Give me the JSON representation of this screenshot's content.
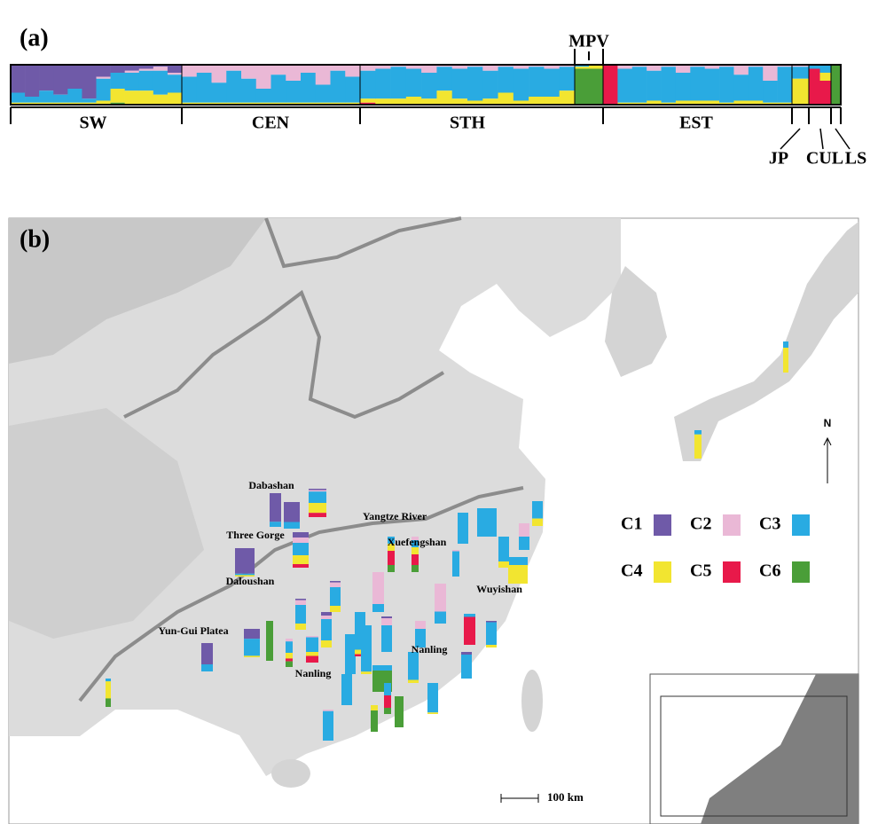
{
  "components": [
    {
      "name": "C1",
      "color": "#6f5aa8"
    },
    {
      "name": "C2",
      "color": "#eab8d6"
    },
    {
      "name": "C3",
      "color": "#29abe2"
    },
    {
      "name": "C4",
      "color": "#f2e530"
    },
    {
      "name": "C5",
      "color": "#e8194a"
    },
    {
      "name": "C6",
      "color": "#4a9e38"
    }
  ],
  "panel_a": {
    "label": "(a)",
    "groups": [
      {
        "name": "SW",
        "individuals": [
          [
            70,
            0,
            25,
            5,
            0,
            0
          ],
          [
            80,
            0,
            15,
            5,
            0,
            0
          ],
          [
            65,
            0,
            30,
            5,
            0,
            0
          ],
          [
            75,
            0,
            20,
            5,
            0,
            0
          ],
          [
            60,
            0,
            35,
            5,
            0,
            0
          ],
          [
            85,
            0,
            10,
            5,
            0,
            0
          ],
          [
            30,
            5,
            55,
            10,
            0,
            0
          ],
          [
            20,
            0,
            40,
            35,
            0,
            5
          ],
          [
            15,
            5,
            45,
            35,
            0,
            0
          ],
          [
            10,
            5,
            50,
            35,
            0,
            0
          ],
          [
            5,
            10,
            60,
            25,
            0,
            0
          ],
          [
            20,
            5,
            45,
            30,
            0,
            0
          ]
        ]
      },
      {
        "name": "CEN",
        "individuals": [
          [
            0,
            30,
            65,
            5,
            0,
            0
          ],
          [
            0,
            20,
            75,
            5,
            0,
            0
          ],
          [
            0,
            45,
            50,
            5,
            0,
            0
          ],
          [
            0,
            15,
            80,
            5,
            0,
            0
          ],
          [
            0,
            35,
            60,
            5,
            0,
            0
          ],
          [
            0,
            60,
            35,
            5,
            0,
            0
          ],
          [
            0,
            25,
            70,
            5,
            0,
            0
          ],
          [
            0,
            40,
            55,
            5,
            0,
            0
          ],
          [
            0,
            20,
            75,
            5,
            0,
            0
          ],
          [
            0,
            50,
            45,
            5,
            0,
            0
          ],
          [
            0,
            15,
            80,
            5,
            0,
            0
          ],
          [
            0,
            30,
            65,
            5,
            0,
            0
          ]
        ]
      },
      {
        "name": "STH",
        "individuals": [
          [
            0,
            15,
            70,
            10,
            5,
            0
          ],
          [
            0,
            10,
            75,
            15,
            0,
            0
          ],
          [
            0,
            5,
            80,
            15,
            0,
            0
          ],
          [
            0,
            10,
            70,
            20,
            0,
            0
          ],
          [
            0,
            20,
            65,
            15,
            0,
            0
          ],
          [
            0,
            5,
            60,
            35,
            0,
            0
          ],
          [
            0,
            10,
            75,
            15,
            0,
            0
          ],
          [
            0,
            5,
            85,
            10,
            0,
            0
          ],
          [
            0,
            15,
            70,
            15,
            0,
            0
          ],
          [
            0,
            5,
            65,
            30,
            0,
            0
          ],
          [
            0,
            10,
            80,
            10,
            0,
            0
          ],
          [
            0,
            5,
            75,
            20,
            0,
            0
          ],
          [
            0,
            10,
            70,
            20,
            0,
            0
          ],
          [
            0,
            5,
            60,
            35,
            0,
            0
          ]
        ]
      },
      {
        "name": "MPV",
        "individuals": [
          [
            0,
            0,
            5,
            5,
            0,
            90
          ],
          [
            0,
            0,
            0,
            10,
            0,
            90
          ]
        ]
      },
      {
        "name": "EST",
        "individuals": [
          [
            0,
            0,
            0,
            0,
            100,
            0
          ],
          [
            0,
            10,
            85,
            5,
            0,
            0
          ],
          [
            0,
            5,
            90,
            5,
            0,
            0
          ],
          [
            0,
            15,
            75,
            10,
            0,
            0
          ],
          [
            0,
            5,
            90,
            5,
            0,
            0
          ],
          [
            0,
            20,
            70,
            10,
            0,
            0
          ],
          [
            0,
            5,
            85,
            10,
            0,
            0
          ],
          [
            0,
            10,
            80,
            10,
            0,
            0
          ],
          [
            0,
            5,
            90,
            5,
            0,
            0
          ],
          [
            0,
            25,
            65,
            10,
            0,
            0
          ],
          [
            0,
            5,
            85,
            10,
            0,
            0
          ],
          [
            0,
            40,
            55,
            5,
            0,
            0
          ],
          [
            0,
            5,
            90,
            5,
            0,
            0
          ]
        ]
      },
      {
        "name": "JP",
        "individuals": [
          [
            0,
            5,
            30,
            65,
            0,
            0
          ]
        ]
      },
      {
        "name": "CUL",
        "individuals": [
          [
            0,
            0,
            10,
            0,
            90,
            0
          ],
          [
            0,
            0,
            20,
            20,
            60,
            0
          ]
        ]
      },
      {
        "name": "LS",
        "individuals": [
          [
            0,
            0,
            0,
            0,
            0,
            100
          ]
        ]
      }
    ]
  },
  "panel_b": {
    "label": "(b)",
    "places": [
      "Dabashan",
      "Three Gorge",
      "Daloushan",
      "Yangtze River",
      "Xuefengshan",
      "Wuyishan",
      "Yun-Gui Platea",
      "Nanling",
      "Nanling"
    ],
    "north": "N",
    "scale": "100 km",
    "populations": [
      [
        85,
        0,
        15,
        0,
        0,
        0
      ],
      [
        75,
        0,
        25,
        0,
        0,
        0
      ],
      [
        5,
        5,
        40,
        35,
        15,
        0
      ],
      [
        90,
        0,
        5,
        5,
        0,
        0
      ],
      [
        15,
        15,
        35,
        25,
        10,
        0
      ],
      [
        75,
        0,
        25,
        0,
        0,
        0
      ],
      [
        35,
        0,
        60,
        5,
        0,
        0
      ],
      [
        0,
        0,
        0,
        0,
        0,
        100
      ],
      [
        0,
        10,
        40,
        20,
        10,
        20
      ],
      [
        0,
        5,
        55,
        15,
        25,
        0
      ],
      [
        5,
        15,
        60,
        20,
        0,
        0
      ],
      [
        5,
        15,
        60,
        20,
        0,
        0
      ],
      [
        10,
        10,
        60,
        20,
        0,
        0
      ],
      [
        0,
        0,
        100,
        0,
        0,
        0
      ],
      [
        0,
        0,
        85,
        10,
        5,
        0
      ],
      [
        0,
        80,
        20,
        0,
        0,
        0
      ],
      [
        5,
        20,
        75,
        0,
        0,
        0
      ],
      [
        0,
        10,
        20,
        20,
        30,
        20
      ],
      [
        0,
        0,
        20,
        20,
        40,
        20
      ],
      [
        0,
        70,
        30,
        0,
        0,
        0
      ],
      [
        0,
        30,
        70,
        0,
        0,
        0
      ],
      [
        0,
        0,
        100,
        0,
        0,
        0
      ],
      [
        0,
        0,
        100,
        0,
        0,
        0
      ],
      [
        0,
        0,
        10,
        0,
        90,
        0
      ],
      [
        0,
        0,
        30,
        70,
        0,
        0
      ],
      [
        0,
        0,
        70,
        30,
        0,
        0
      ],
      [
        0,
        50,
        50,
        0,
        0,
        0
      ],
      [
        0,
        0,
        80,
        20,
        0,
        0
      ],
      [
        0,
        0,
        20,
        0,
        0,
        80
      ],
      [
        0,
        0,
        0,
        0,
        0,
        100
      ],
      [
        0,
        0,
        0,
        20,
        0,
        80
      ],
      [
        0,
        5,
        95,
        0,
        0,
        0
      ],
      [
        0,
        0,
        100,
        0,
        0,
        0
      ],
      [
        0,
        0,
        90,
        10,
        0,
        0
      ],
      [
        0,
        0,
        95,
        5,
        0,
        0
      ],
      [
        10,
        0,
        90,
        0,
        0,
        0
      ],
      [
        5,
        0,
        85,
        10,
        0,
        0
      ],
      [
        0,
        0,
        20,
        80,
        0,
        0
      ],
      [
        0,
        0,
        15,
        85,
        0,
        0
      ],
      [
        0,
        0,
        10,
        60,
        0,
        30
      ],
      [
        0,
        0,
        40,
        0,
        40,
        20
      ],
      [
        0,
        0,
        95,
        5,
        0,
        0
      ],
      [
        0,
        5,
        95,
        0,
        0,
        0
      ]
    ]
  }
}
